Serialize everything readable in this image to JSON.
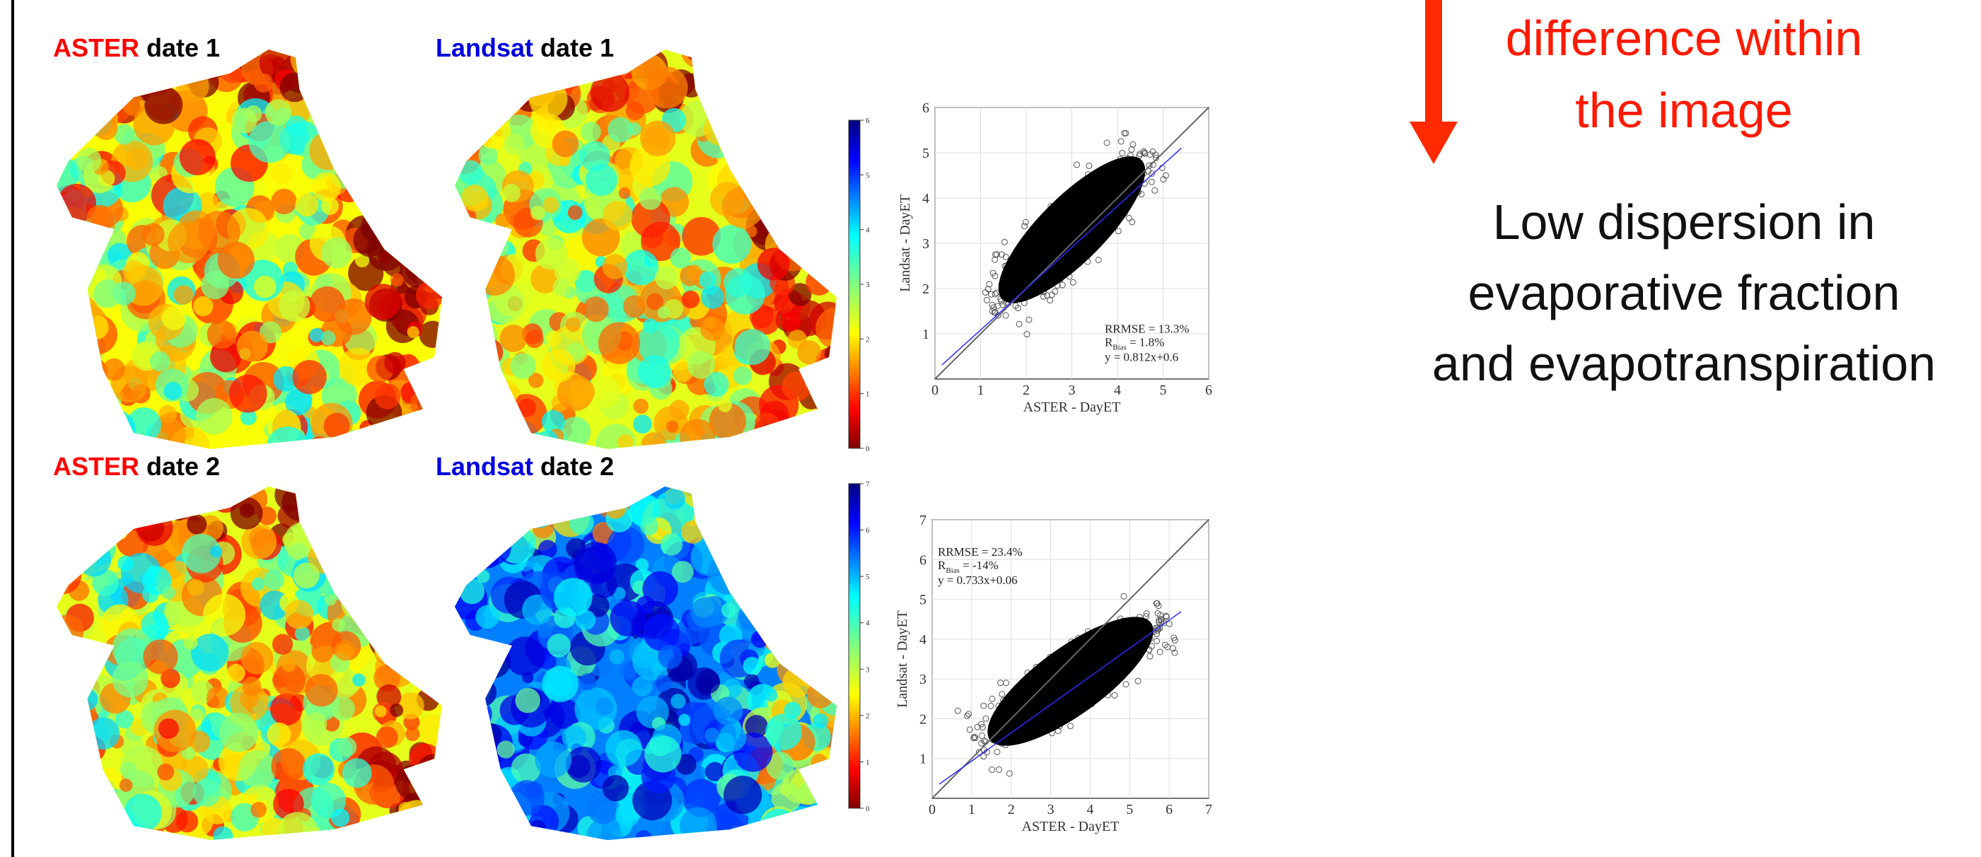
{
  "header": {
    "lines": [
      "difference within",
      "the image"
    ]
  },
  "description": {
    "lines": [
      "Low dispersion in",
      "evaporative fraction",
      "and evapotranspiration"
    ]
  },
  "rows": [
    {
      "labels": [
        {
          "sensor": "ASTER",
          "suffix": "date 1"
        },
        {
          "sensor": "Landsat",
          "suffix": "date 1"
        }
      ],
      "colorbar": {
        "ticks": [
          0,
          1,
          2,
          3,
          4,
          5,
          6
        ]
      },
      "scatter": {
        "xlabel": "ASTER - DayET",
        "ylabel": "Landsat - DayET",
        "xlim": [
          0,
          6
        ],
        "ylim": [
          0,
          6
        ],
        "xticks": [
          0,
          1,
          2,
          3,
          4,
          5,
          6
        ],
        "yticks": [
          1,
          2,
          3,
          4,
          5,
          6
        ],
        "stats": {
          "rrmse": "RRMSE = 13.3%",
          "bias_main": "R",
          "bias_sub": "Bias",
          "bias_rest": " = 1.8%",
          "fit": "y = 0.812x+0.6"
        }
      }
    },
    {
      "labels": [
        {
          "sensor": "ASTER",
          "suffix": "date 2"
        },
        {
          "sensor": "Landsat",
          "suffix": "date 2"
        }
      ],
      "colorbar": {
        "ticks": [
          0,
          1,
          2,
          3,
          4,
          5,
          6,
          7
        ]
      },
      "scatter": {
        "xlabel": "ASTER - DayET",
        "ylabel": "Landsat - DayET",
        "xlim": [
          0,
          7
        ],
        "ylim": [
          0,
          7
        ],
        "xticks": [
          0,
          1,
          2,
          3,
          4,
          5,
          6,
          7
        ],
        "yticks": [
          1,
          2,
          3,
          4,
          5,
          6,
          7
        ],
        "stats": {
          "rrmse": "RRMSE = 23.4%",
          "bias_main": "R",
          "bias_sub": "Bias",
          "bias_rest": " = -14%",
          "fit": "y = 0.733x+0.06"
        }
      }
    }
  ]
}
